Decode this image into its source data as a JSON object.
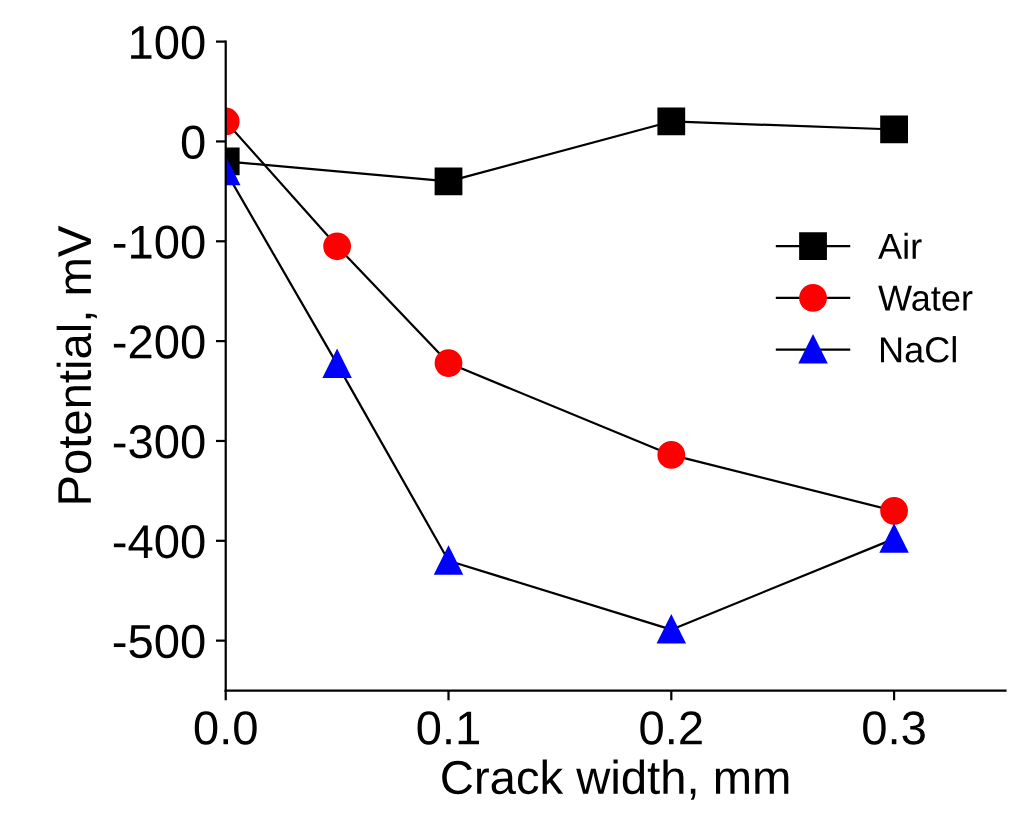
{
  "chart_data": {
    "type": "line",
    "xlabel": "Crack width, mm",
    "ylabel": "Potential, mV",
    "xlim": [
      0,
      0.35
    ],
    "xticks": [
      {
        "value": 0,
        "label": "0.0"
      },
      0.1,
      0.2,
      0.3
    ],
    "ylim": [
      -550,
      100
    ],
    "yticks": [
      -500,
      -400,
      -300,
      -200,
      -100,
      0,
      100
    ],
    "legend": "right",
    "grid": false,
    "series": [
      {
        "name": "Air",
        "color": "#000000",
        "marker": "square",
        "x": [
          0,
          0.1,
          0.2,
          0.3
        ],
        "values": [
          -20,
          -40,
          20,
          12
        ]
      },
      {
        "name": "Water",
        "color": "#ff0000",
        "marker": "circle",
        "x": [
          0,
          0.05,
          0.1,
          0.2,
          0.3
        ],
        "values": [
          20,
          -105,
          -222,
          -314,
          -370
        ]
      },
      {
        "name": "NaCl",
        "color": "#0000ff",
        "marker": "triangle",
        "x": [
          0,
          0.05,
          0.1,
          0.2,
          0.3
        ],
        "values": [
          -30,
          -223,
          -420,
          -489,
          -398
        ]
      }
    ]
  }
}
